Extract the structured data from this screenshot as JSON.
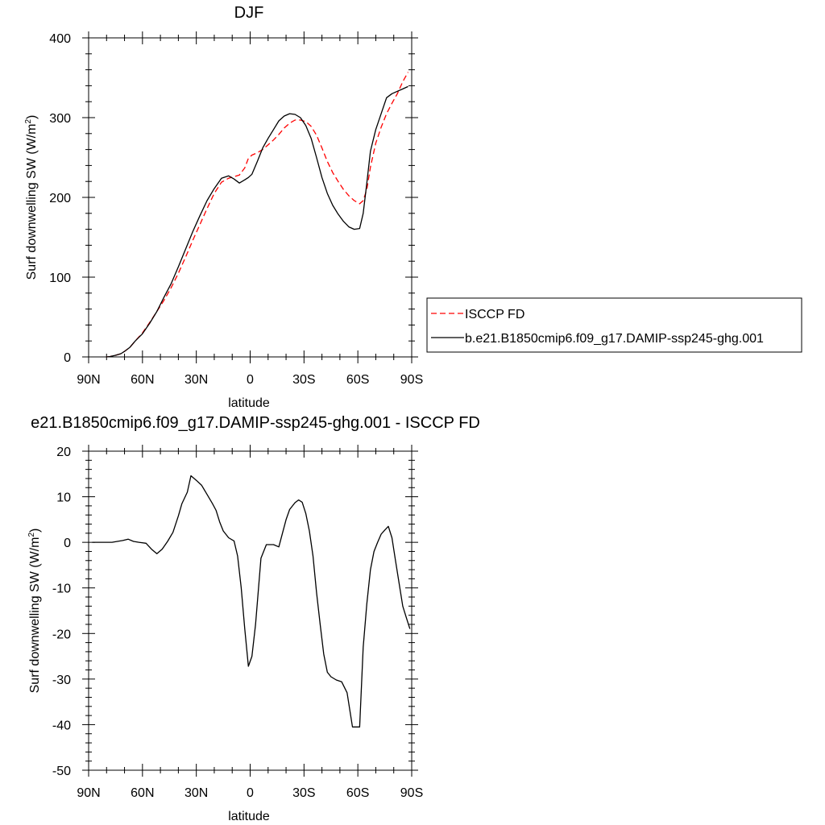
{
  "chart_data": [
    {
      "type": "line",
      "title": "DJF",
      "xlabel": "latitude",
      "ylabel": "Surf downwelling SW (W/m",
      "ylabel_sup": "2",
      "ylabel_close": ")",
      "xlim": [
        90,
        -90
      ],
      "ylim": [
        0,
        400
      ],
      "xticks": [
        90,
        60,
        30,
        0,
        -30,
        -60,
        -90
      ],
      "xtick_labels": [
        "90N",
        "60N",
        "30N",
        "0",
        "30S",
        "60S",
        "90S"
      ],
      "yticks": [
        0,
        100,
        200,
        300,
        400
      ],
      "ytick_labels": [
        "0",
        "100",
        "200",
        "300",
        "400"
      ],
      "legend": "right-middle",
      "series": [
        {
          "name": "ISCCP FD",
          "color": "#ff0000",
          "dash": "dashed",
          "x": [
            80,
            78,
            75,
            72,
            70,
            67,
            64,
            60,
            56,
            52,
            48,
            44,
            40,
            36,
            32,
            28,
            24,
            20,
            16,
            12,
            9,
            6,
            3,
            1,
            -1,
            -4,
            -7,
            -10,
            -13,
            -16,
            -19,
            -22,
            -25,
            -28,
            -31,
            -34,
            -37,
            -40,
            -43,
            -46,
            -49,
            -52,
            -55,
            -58,
            -61,
            -63,
            -65,
            -67,
            -70,
            -73,
            -76,
            -79,
            -82,
            -85,
            -88
          ],
          "values": [
            0,
            0.5,
            2,
            4,
            7,
            12,
            20,
            30,
            43,
            57,
            71,
            87,
            105,
            125,
            146,
            166,
            186,
            205,
            219,
            224,
            226,
            228,
            237,
            249,
            253,
            256,
            260,
            266,
            272,
            279,
            287,
            293,
            297,
            297,
            295,
            289,
            278,
            262,
            245,
            231,
            220,
            210,
            202,
            196,
            192,
            196,
            210,
            238,
            268,
            288,
            305,
            318,
            330,
            345,
            357
          ]
        },
        {
          "name": "b.e21.B1850cmip6.f09_g17.DAMIP-ssp245-ghg.001",
          "color": "#000000",
          "dash": "solid",
          "x": [
            80,
            78,
            75,
            72,
            70,
            67,
            64,
            60,
            56,
            52,
            48,
            44,
            40,
            36,
            32,
            28,
            24,
            20,
            16,
            12,
            9,
            6,
            3,
            1,
            -1,
            -4,
            -7,
            -10,
            -13,
            -16,
            -19,
            -22,
            -25,
            -28,
            -31,
            -34,
            -37,
            -40,
            -43,
            -46,
            -49,
            -52,
            -55,
            -58,
            -61,
            -63,
            -65,
            -67,
            -70,
            -73,
            -76,
            -79,
            -82,
            -85,
            -88
          ],
          "values": [
            0,
            0.5,
            2,
            4,
            7,
            12,
            20,
            29,
            42,
            57,
            75,
            92,
            113,
            135,
            157,
            177,
            196,
            211,
            224,
            227,
            223,
            218,
            222,
            225,
            229,
            245,
            262,
            274,
            285,
            296,
            302,
            305,
            304,
            300,
            290,
            274,
            250,
            225,
            205,
            190,
            179,
            170,
            163,
            160,
            161,
            180,
            218,
            258,
            285,
            305,
            325,
            330,
            333,
            336,
            339
          ]
        }
      ]
    },
    {
      "type": "line",
      "title": "e21.B1850cmip6.f09_g17.DAMIP-ssp245-ghg.001 - ISCCP FD",
      "xlabel": "latitude",
      "ylabel": "Surf downwelling SW (W/m",
      "ylabel_sup": "2",
      "ylabel_close": ")",
      "xlim": [
        90,
        -90
      ],
      "ylim": [
        -50,
        20
      ],
      "xticks": [
        90,
        60,
        30,
        0,
        -30,
        -60,
        -90
      ],
      "xtick_labels": [
        "90N",
        "60N",
        "30N",
        "0",
        "30S",
        "60S",
        "90S"
      ],
      "yticks": [
        -50,
        -40,
        -30,
        -20,
        -10,
        0,
        10,
        20
      ],
      "ytick_labels": [
        "-50",
        "-40",
        "-30",
        "-20",
        "-10",
        "0",
        "10",
        "20"
      ],
      "series": [
        {
          "color": "#000000",
          "dash": "solid",
          "x": [
            88,
            84,
            80,
            77,
            74,
            71,
            68,
            65,
            62,
            58,
            55,
            52,
            49,
            46,
            43,
            40,
            38,
            35,
            33,
            30,
            27,
            24,
            21,
            19,
            17,
            15,
            12,
            9,
            7,
            5,
            3,
            1,
            -1,
            -3,
            -6,
            -9,
            -13,
            -16,
            -18,
            -20,
            -22,
            -25,
            -27,
            -29,
            -31,
            -33,
            -35,
            -37,
            -39,
            -41,
            -43,
            -45,
            -48,
            -51,
            -54,
            -57,
            -59,
            -61,
            -63,
            -65,
            -67,
            -69,
            -71,
            -73,
            -75,
            -77,
            -79,
            -81,
            -83,
            -85,
            -87,
            -89
          ],
          "values": [
            0,
            0,
            0,
            0,
            0.2,
            0.4,
            0.7,
            0.2,
            0,
            -0.2,
            -1.5,
            -2.5,
            -1.5,
            0.2,
            2.2,
            5.8,
            8.5,
            11,
            14.6,
            13.6,
            12.5,
            10.5,
            8.5,
            7,
            4.5,
            2.5,
            1,
            0.3,
            -3,
            -10,
            -19,
            -27.2,
            -25,
            -18,
            -3.5,
            -0.5,
            -0.5,
            -1,
            2,
            5,
            7.2,
            8.7,
            9.3,
            8.8,
            6.3,
            2.5,
            -3,
            -11,
            -18,
            -24.5,
            -28.5,
            -29.5,
            -30.2,
            -30.6,
            -33,
            -40.5,
            -40.5,
            -40.5,
            -23,
            -13.5,
            -6,
            -2,
            0,
            1.8,
            2.7,
            3.5,
            1,
            -4,
            -9,
            -14,
            -16.5,
            -19
          ]
        }
      ]
    }
  ]
}
